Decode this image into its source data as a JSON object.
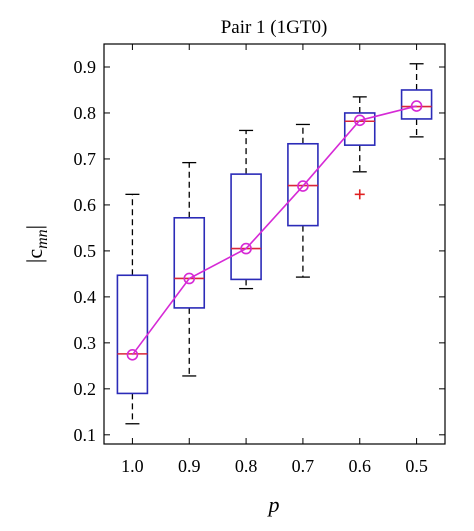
{
  "chart_data": {
    "type": "box",
    "title": "Pair 1 (1GT0)",
    "xlabel": "p",
    "ylabel": {
      "base": "|c",
      "sub": "mn",
      "close": "|"
    },
    "categories": [
      "1.0",
      "0.9",
      "0.8",
      "0.7",
      "0.6",
      "0.5"
    ],
    "ylim": [
      0.08,
      0.95
    ],
    "yticks": [
      0.1,
      0.2,
      0.3,
      0.4,
      0.5,
      0.6,
      0.7,
      0.8,
      0.9
    ],
    "ytick_labels": [
      "0.1",
      "0.2",
      "0.3",
      "0.4",
      "0.5",
      "0.6",
      "0.7",
      "0.8",
      "0.9"
    ],
    "grid": false,
    "boxes": [
      {
        "min": 0.124,
        "q1": 0.19,
        "median": 0.276,
        "q3": 0.447,
        "max": 0.623,
        "outliers": []
      },
      {
        "min": 0.228,
        "q1": 0.376,
        "median": 0.44,
        "q3": 0.572,
        "max": 0.692,
        "outliers": []
      },
      {
        "min": 0.418,
        "q1": 0.438,
        "median": 0.505,
        "q3": 0.667,
        "max": 0.762,
        "outliers": []
      },
      {
        "min": 0.443,
        "q1": 0.555,
        "median": 0.642,
        "q3": 0.733,
        "max": 0.775,
        "outliers": []
      },
      {
        "min": 0.672,
        "q1": 0.73,
        "median": 0.782,
        "q3": 0.8,
        "max": 0.835,
        "outliers": [
          0.623
        ]
      },
      {
        "min": 0.748,
        "q1": 0.787,
        "median": 0.814,
        "q3": 0.85,
        "max": 0.907,
        "outliers": []
      }
    ],
    "mean_line": [
      0.274,
      0.44,
      0.505,
      0.641,
      0.784,
      0.815
    ],
    "colors": {
      "box": "#2b2bb8",
      "median": "#d9263a",
      "whisker": "#000000",
      "outlier": "#e02020",
      "mean_line": "#d62ad6"
    }
  }
}
